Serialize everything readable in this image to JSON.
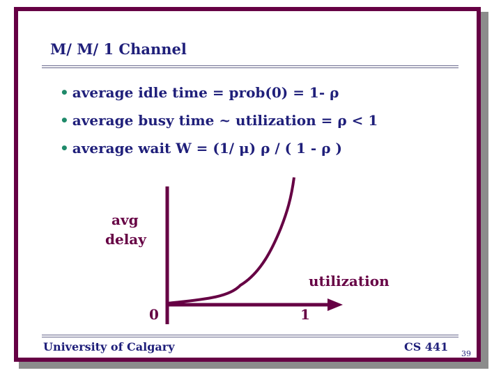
{
  "slide": {
    "title": "M/ M/ 1  Channel",
    "bullets": [
      "average idle time = prob(0) = 1- ρ",
      "average busy time ~ utilization = ρ < 1",
      "average wait W =  (1/ μ) ρ /  ( 1 - ρ )"
    ],
    "graph": {
      "y_label_line1": "avg",
      "y_label_line2": "delay",
      "x_label": "utilization",
      "origin_label": "0",
      "x_tick_label": "1"
    },
    "footer": {
      "left": "University of Calgary",
      "right": "CS 441",
      "page_number": "39"
    }
  },
  "colors": {
    "frame": "#660044",
    "title_text": "#1f1f7a",
    "bullet_dot": "#1f8a6a",
    "graph": "#660044"
  }
}
